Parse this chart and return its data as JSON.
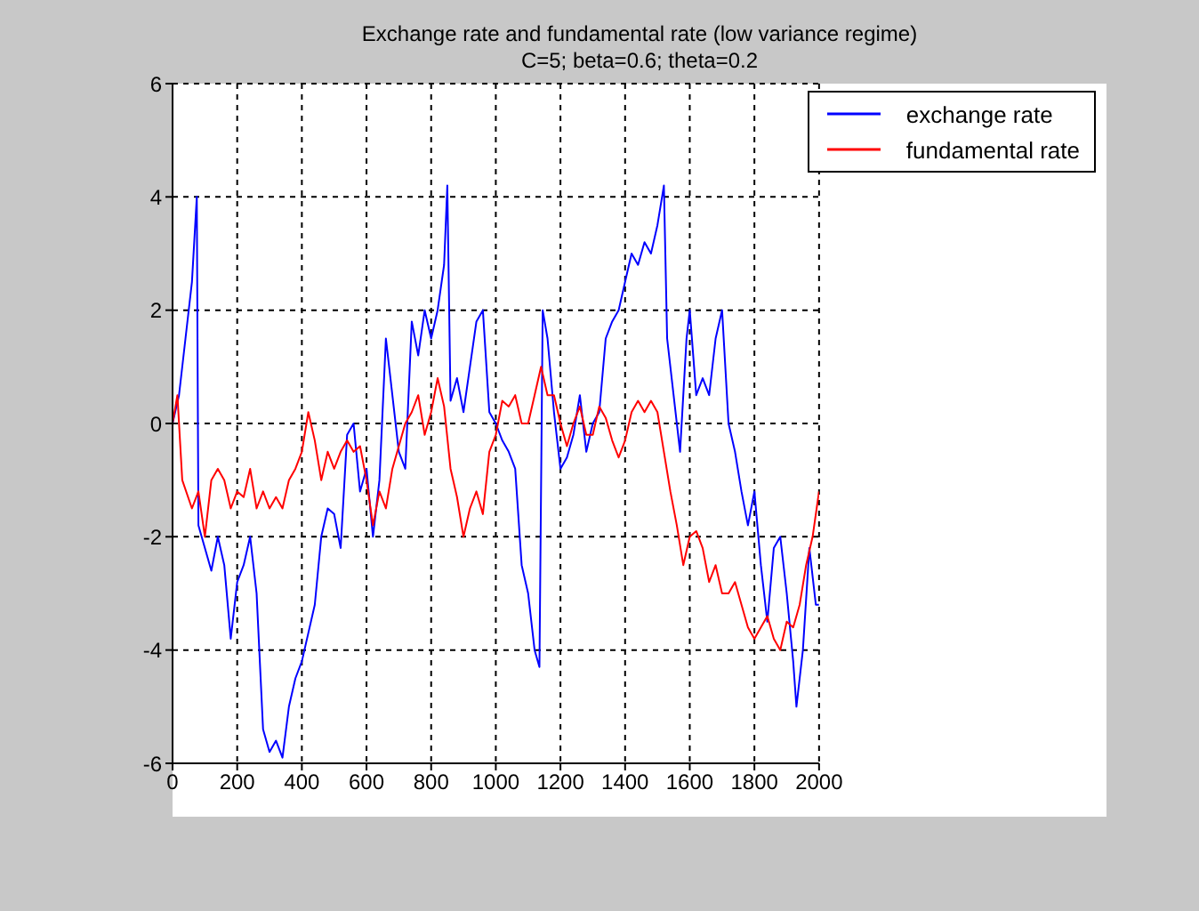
{
  "chart_data": {
    "type": "line",
    "title": "Exchange rate and fundamental rate (low variance regime)",
    "subtitle": "C=5; beta=0.6; theta=0.2",
    "xlim": [
      0,
      2000
    ],
    "xticks": [
      0,
      200,
      400,
      600,
      800,
      1000,
      1200,
      1400,
      1600,
      1800,
      2000
    ],
    "ylim": [
      -6,
      6
    ],
    "yticks": [
      -6,
      -4,
      -2,
      0,
      2,
      4,
      6
    ],
    "grid": true,
    "legend": "top right",
    "marker": "none",
    "line_style": "solid",
    "series": [
      {
        "name": "exchange rate",
        "color": "#0000ff",
        "x": [
          0,
          20,
          40,
          60,
          75,
          80,
          100,
          120,
          140,
          160,
          180,
          200,
          220,
          240,
          260,
          280,
          300,
          320,
          340,
          360,
          380,
          400,
          440,
          460,
          480,
          500,
          520,
          540,
          560,
          580,
          600,
          620,
          640,
          660,
          680,
          700,
          720,
          740,
          760,
          780,
          800,
          820,
          840,
          850,
          860,
          880,
          900,
          920,
          940,
          960,
          980,
          1000,
          1020,
          1040,
          1060,
          1080,
          1100,
          1120,
          1135,
          1145,
          1160,
          1180,
          1200,
          1220,
          1240,
          1260,
          1280,
          1300,
          1320,
          1340,
          1360,
          1380,
          1400,
          1420,
          1440,
          1460,
          1480,
          1500,
          1520,
          1530,
          1550,
          1570,
          1590,
          1600,
          1620,
          1640,
          1660,
          1680,
          1700,
          1720,
          1740,
          1760,
          1780,
          1800,
          1820,
          1840,
          1860,
          1880,
          1900,
          1920,
          1930,
          1950,
          1970,
          1990,
          2000
        ],
        "values": [
          0,
          0.5,
          1.5,
          2.5,
          4,
          -1.8,
          -2.2,
          -2.6,
          -2,
          -2.5,
          -3.8,
          -2.8,
          -2.5,
          -2,
          -3,
          -5.4,
          -5.8,
          -5.6,
          -5.9,
          -5,
          -4.5,
          -4.2,
          -3.2,
          -2,
          -1.5,
          -1.6,
          -2.2,
          -0.2,
          0,
          -1.2,
          -0.8,
          -2,
          -1,
          1.5,
          0.5,
          -0.5,
          -0.8,
          1.8,
          1.2,
          2,
          1.5,
          2,
          2.8,
          4.2,
          0.4,
          0.8,
          0.2,
          1,
          1.8,
          2,
          0.2,
          0,
          -0.3,
          -0.5,
          -0.8,
          -2.5,
          -3,
          -4,
          -4.3,
          2,
          1.5,
          0.2,
          -0.8,
          -0.6,
          -0.2,
          0.5,
          -0.5,
          0,
          0.2,
          1.5,
          1.8,
          2,
          2.5,
          3,
          2.8,
          3.2,
          3,
          3.5,
          4.2,
          1.5,
          0.5,
          -0.5,
          1.5,
          2,
          0.5,
          0.8,
          0.5,
          1.5,
          2,
          0,
          -0.5,
          -1.2,
          -1.8,
          -1.2,
          -2.5,
          -3.5,
          -2.2,
          -2,
          -3,
          -4.2,
          -5,
          -4,
          -2.2,
          -3.2,
          -3.2
        ]
      },
      {
        "name": "fundamental rate",
        "color": "#ff0000",
        "x": [
          0,
          15,
          30,
          60,
          80,
          100,
          120,
          140,
          160,
          180,
          200,
          220,
          240,
          260,
          280,
          300,
          320,
          340,
          360,
          380,
          400,
          420,
          440,
          460,
          480,
          500,
          520,
          540,
          560,
          580,
          600,
          620,
          640,
          660,
          680,
          700,
          720,
          740,
          760,
          780,
          800,
          820,
          840,
          860,
          880,
          900,
          920,
          940,
          960,
          980,
          1000,
          1020,
          1040,
          1060,
          1080,
          1100,
          1120,
          1140,
          1160,
          1180,
          1200,
          1220,
          1240,
          1260,
          1280,
          1300,
          1320,
          1340,
          1360,
          1380,
          1400,
          1420,
          1440,
          1460,
          1480,
          1500,
          1520,
          1540,
          1560,
          1580,
          1600,
          1620,
          1640,
          1660,
          1680,
          1700,
          1720,
          1740,
          1760,
          1780,
          1800,
          1820,
          1840,
          1860,
          1880,
          1900,
          1920,
          1940,
          1960,
          1980,
          2000
        ],
        "values": [
          0,
          0.5,
          -1,
          -1.5,
          -1.2,
          -2,
          -1,
          -0.8,
          -1,
          -1.5,
          -1.2,
          -1.3,
          -0.8,
          -1.5,
          -1.2,
          -1.5,
          -1.3,
          -1.5,
          -1,
          -0.8,
          -0.5,
          0.2,
          -0.3,
          -1,
          -0.5,
          -0.8,
          -0.5,
          -0.3,
          -0.5,
          -0.4,
          -1,
          -1.8,
          -1.2,
          -1.5,
          -0.8,
          -0.4,
          0,
          0.2,
          0.5,
          -0.2,
          0.2,
          0.8,
          0.3,
          -0.8,
          -1.3,
          -2,
          -1.5,
          -1.2,
          -1.6,
          -0.5,
          -0.2,
          0.4,
          0.3,
          0.5,
          0,
          0,
          0.5,
          1,
          0.5,
          0.5,
          0,
          -0.4,
          0,
          0.3,
          -0.2,
          -0.2,
          0.3,
          0.1,
          -0.3,
          -0.6,
          -0.3,
          0.2,
          0.4,
          0.2,
          0.4,
          0.2,
          -0.5,
          -1.2,
          -1.8,
          -2.5,
          -2,
          -1.9,
          -2.2,
          -2.8,
          -2.5,
          -3,
          -3,
          -2.8,
          -3.2,
          -3.6,
          -3.8,
          -3.6,
          -3.4,
          -3.8,
          -4,
          -3.5,
          -3.6,
          -3.2,
          -2.5,
          -2,
          -1.2
        ]
      }
    ]
  }
}
